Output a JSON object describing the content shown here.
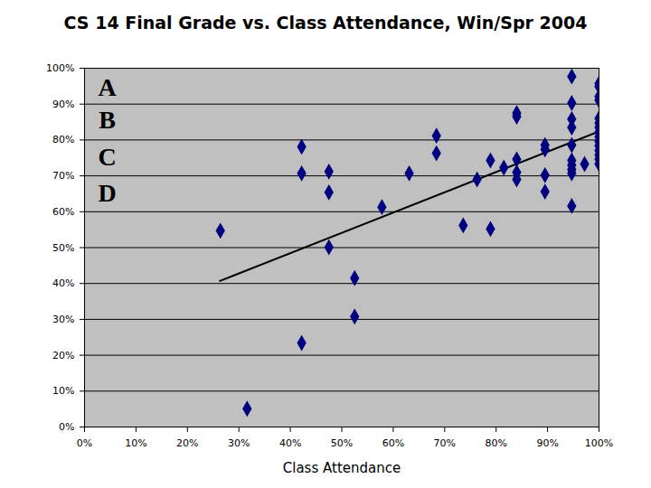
{
  "chart_data": {
    "type": "scatter",
    "title": "CS 14 Final Grade vs. Class Attendance, Win/Spr 2004",
    "x_label": "Class Attendance",
    "x": [
      26.4,
      31.6,
      42.2,
      42.2,
      42.2,
      47.5,
      47.5,
      47.5,
      52.5,
      52.5,
      57.8,
      63.1,
      68.4,
      68.4,
      73.6,
      76.3,
      78.9,
      78.9,
      81.5,
      84.0,
      84.0,
      84.0,
      84.0,
      84.0,
      89.5,
      89.5,
      89.5,
      89.5,
      94.7,
      94.7,
      94.7,
      94.7,
      94.7,
      94.7,
      94.7,
      94.7,
      94.7,
      94.7,
      97.2,
      100,
      100,
      100,
      100,
      100,
      100,
      100,
      100,
      100,
      100,
      100,
      100,
      100,
      100,
      100
    ],
    "values": [
      54.7,
      5.1,
      78.1,
      70.7,
      23.4,
      71.2,
      65.4,
      50.1,
      41.5,
      30.8,
      61.3,
      70.7,
      81.2,
      76.3,
      56.2,
      69.0,
      74.3,
      55.2,
      72.3,
      87.5,
      86.5,
      74.6,
      71.0,
      69.0,
      78.6,
      77.4,
      70.2,
      65.6,
      97.7,
      90.3,
      85.8,
      83.5,
      78.6,
      74.3,
      73.0,
      71.8,
      70.7,
      61.6,
      73.3,
      95.7,
      94.9,
      92.1,
      91.1,
      86.0,
      84.7,
      83.5,
      82.2,
      80.9,
      79.6,
      78.4,
      77.1,
      75.8,
      74.6,
      73.3
    ],
    "color": "#000080",
    "marker": "diamond",
    "xlim": [
      0,
      100
    ],
    "ylim": [
      0,
      100
    ],
    "xticks": [
      {
        "value": 0,
        "label": "0%"
      },
      {
        "value": 10,
        "label": "10%"
      },
      {
        "value": 20,
        "label": "20%"
      },
      {
        "value": 30,
        "label": "30%"
      },
      {
        "value": 40,
        "label": "40%"
      },
      {
        "value": 50,
        "label": "50%"
      },
      {
        "value": 60,
        "label": "60%"
      },
      {
        "value": 70,
        "label": "70%"
      },
      {
        "value": 80,
        "label": "80%"
      },
      {
        "value": 90,
        "label": "90%"
      },
      {
        "value": 100,
        "label": "100%"
      }
    ],
    "yticks": [
      {
        "value": 0,
        "label": "0%"
      },
      {
        "value": 10,
        "label": "10%"
      },
      {
        "value": 20,
        "label": "20%"
      },
      {
        "value": 30,
        "label": "30%"
      },
      {
        "value": 40,
        "label": "40%"
      },
      {
        "value": 50,
        "label": "50%"
      },
      {
        "value": 60,
        "label": "60%"
      },
      {
        "value": 70,
        "label": "70%"
      },
      {
        "value": 80,
        "label": "80%"
      },
      {
        "value": 90,
        "label": "90%"
      },
      {
        "value": 100,
        "label": "100%"
      }
    ],
    "grid": true,
    "trendline": {
      "x": [
        26.3,
        100
      ],
      "values": [
        40.7,
        82.4
      ]
    },
    "annotations": [
      {
        "text": "A",
        "x": 4.4,
        "y": 94.7
      },
      {
        "text": "B",
        "x": 4.4,
        "y": 85.5
      },
      {
        "text": "C",
        "x": 4.4,
        "y": 75.3
      },
      {
        "text": "D",
        "x": 4.4,
        "y": 65.1
      }
    ]
  }
}
